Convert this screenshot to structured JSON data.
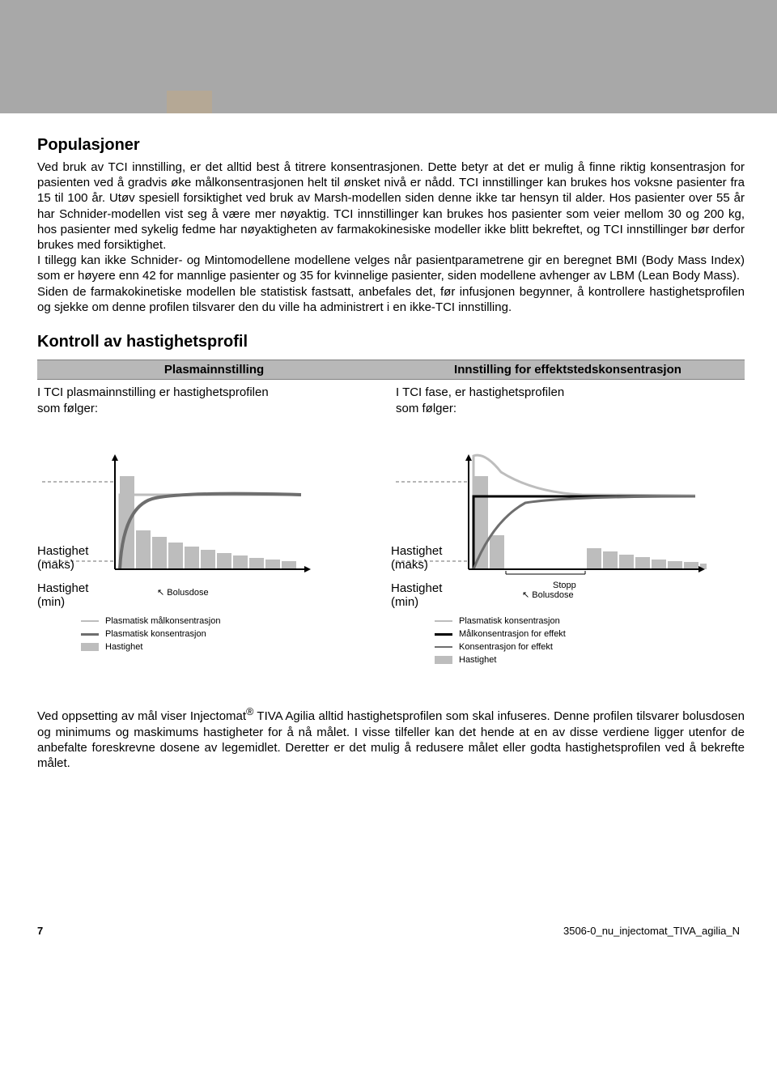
{
  "section1": {
    "title": "Populasjoner",
    "body": "Ved bruk av TCI innstilling, er det alltid best å titrere konsentrasjonen. Dette betyr at det er mulig å finne riktig konsentrasjon for pasienten ved å gradvis øke målkonsentrasjonen helt til ønsket nivå er nådd. TCI innstillinger kan brukes hos voksne pasienter fra 15 til 100 år. Utøv spesiell forsiktighet ved bruk av Marsh-modellen siden denne ikke tar hensyn til alder. Hos pasienter over 55 år har Schnider-modellen vist seg å være mer nøyaktig. TCI innstillinger kan brukes hos pasienter som veier mellom 30 og 200 kg, hos pasienter med sykelig fedme har nøyaktigheten av farmakokinesiske modeller ikke blitt bekreftet, og TCI innstillinger bør derfor brukes med forsiktighet.",
    "body2": "I tillegg kan ikke Schnider- og Mintomodellene modellene velges når pasientparametrene gir en beregnet BMI (Body Mass Index) som er høyere enn 42 for mannlige pasienter og 35 for kvinnelige pasienter, siden modellene avhenger av LBM (Lean Body Mass).",
    "body3": "Siden de farmakokinetiske modellen ble statistisk fastsatt, anbefales det, før infusjonen begynner, å kontrollere hastighetsprofilen og sjekke om denne profilen tilsvarer den du ville ha administrert i en ikke-TCI innstilling."
  },
  "section2": {
    "title": "Kontroll av hastighetsprofil",
    "left": {
      "header": "Plasmainnstilling",
      "text1": "I TCI plasmainnstilling er hastighetsprofilen",
      "text2": "som følger:",
      "chart": {
        "axis_max_label": "Hastighet (maks)",
        "axis_min_label": "Hastighet (min)",
        "annotation_bolus": "Bolusdose",
        "legend": [
          {
            "kind": "line",
            "color": "#bdbdbd",
            "stroke": 2,
            "label": "Plasmatisk målkonsentrasjon"
          },
          {
            "kind": "line",
            "color": "#6e6e6e",
            "stroke": 3,
            "label": "Plasmatisk konsentrasjon"
          },
          {
            "kind": "box",
            "color": "#bdbdbd",
            "label": "Hastighet"
          }
        ],
        "colors": {
          "axis": "#000000",
          "dash": "#6e6e6e",
          "bar_fill": "#bdbdbd",
          "curve_target": "#bdbdbd",
          "curve_actual": "#6e6e6e",
          "bg": "#ffffff"
        },
        "bars": [
          115,
          48,
          40,
          33,
          28,
          24,
          20,
          17,
          14,
          12,
          10
        ],
        "max_line_y": 108,
        "min_line_y": 10
      }
    },
    "right": {
      "header": "Innstilling for effektstedskonsentrasjon",
      "text1": "I TCI fase, er hastighetsprofilen",
      "text2": "som følger:",
      "chart": {
        "axis_max_label": "Hastighet (maks)",
        "axis_min_label": "Hastighet (min)",
        "annotation_stopp": "Stopp",
        "annotation_bolus": "Bolusdose",
        "legend": [
          {
            "kind": "line",
            "color": "#bdbdbd",
            "stroke": 2,
            "label": "Plasmatisk konsentrasjon"
          },
          {
            "kind": "line",
            "color": "#000000",
            "stroke": 3,
            "label": "Målkonsentrasjon for effekt"
          },
          {
            "kind": "line",
            "color": "#6e6e6e",
            "stroke": 2,
            "label": "Konsentrasjon for effekt"
          },
          {
            "kind": "box",
            "color": "#bdbdbd",
            "label": "Hastighet"
          }
        ],
        "colors": {
          "axis": "#000000",
          "dash": "#6e6e6e",
          "bar_fill": "#bdbdbd",
          "curve_plasma": "#bdbdbd",
          "curve_effect_target": "#000000",
          "curve_effect": "#6e6e6e",
          "bg": "#ffffff"
        },
        "bars_group1": [
          115,
          42
        ],
        "gap_bars": 5,
        "bars_group2": [
          26,
          22,
          18,
          15,
          12,
          10,
          9,
          7,
          6,
          5,
          4
        ],
        "max_line_y": 108,
        "min_line_y": 10
      }
    }
  },
  "bottom": {
    "text": "Ved oppsetting av mål viser Injectomat® TIVA Agilia alltid hastighetsprofilen som skal infuseres. Denne profilen tilsvarer bolusdosen og minimums og maskimums hastigheter for å nå målet. I visse tilfeller kan det hende at en av disse verdiene ligger utenfor de anbefalte foreskrevne dosene av legemidlet. Deretter er det mulig å redusere målet eller godta hastighetsprofilen ved å bekrefte målet.",
    "text_prefix": "Ved oppsetting av mål viser Injectomat",
    "text_suffix": " TIVA Agilia alltid hastighetsprofilen som skal infuseres. Denne profilen tilsvarer bolusdosen og minimums og maskimums hastigheter for å nå målet. I visse tilfeller kan det hende at en av disse verdiene ligger utenfor de anbefalte foreskrevne dosene av legemidlet. Deretter er det mulig å redusere målet eller godta hastighetsprofilen ved å bekrefte målet."
  },
  "footer": {
    "page": "7",
    "doc_id": "3506-0_nu_injectomat_TIVA_agilia_N"
  }
}
